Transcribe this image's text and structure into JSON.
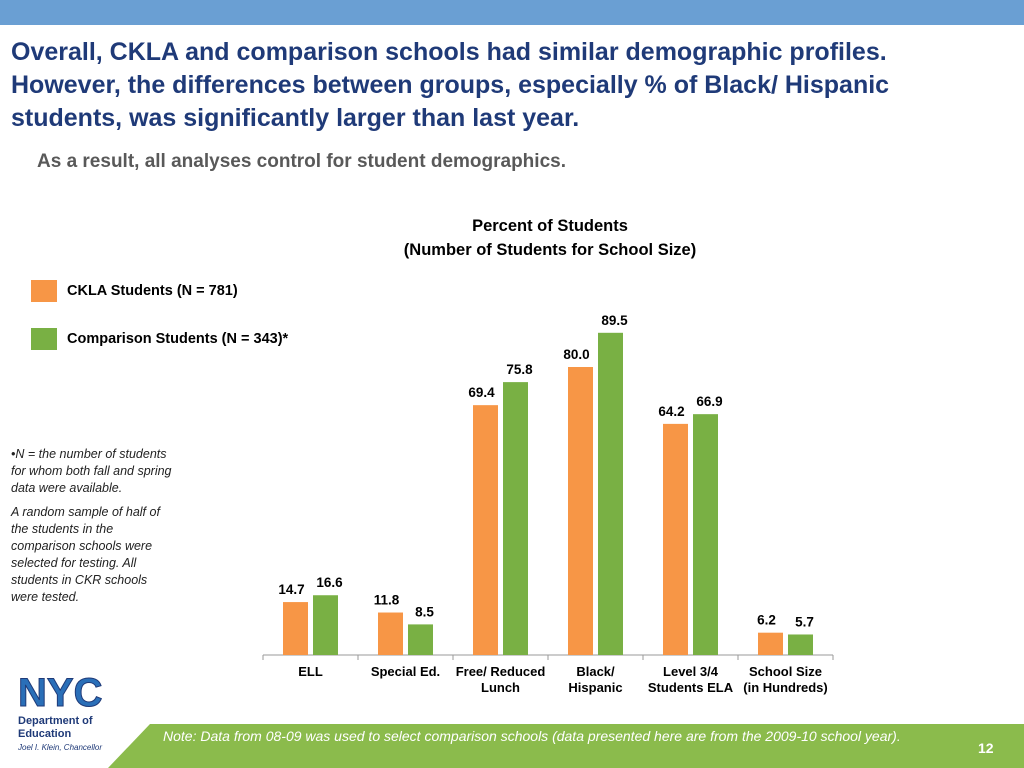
{
  "headline": {
    "line1": "Overall, CKLA and comparison schools had similar demographic profiles.",
    "line2": "However, the differences between groups, especially % of Black/ Hispanic",
    "line3": "students, was significantly larger than last year."
  },
  "subhead": "As a result, all analyses control for student demographics.",
  "footnotes": {
    "n_note": "•N = the number of students for whom both fall and spring data were available.",
    "sample_note": "A random sample of half of the students in the comparison schools were selected for testing.  All students in CKR schools were tested."
  },
  "logo": {
    "mark": "NYC",
    "dept_line1": "Department of",
    "dept_line2": "Education",
    "chancellor": "Joel I. Klein, Chancellor"
  },
  "bottom_note": "Note: Data from 08-09 was used to select comparison schools (data presented here are from the 2009-10 school year).",
  "page_number": "12",
  "colors": {
    "ckla": "#f79646",
    "comparison": "#79b044",
    "top_bar": "#6a9fd3",
    "bottom_bar": "#8bbb4c",
    "headline": "#1f3a78"
  },
  "chart_data": {
    "type": "bar",
    "title": "Percent of Students",
    "subtitle": "(Number of Students for School Size)",
    "xlabel": "",
    "ylabel": "",
    "ylim": [
      0,
      100
    ],
    "grid": false,
    "legend_position": "left",
    "categories": [
      [
        "ELL"
      ],
      [
        "Special Ed."
      ],
      [
        "Free/ Reduced",
        "Lunch"
      ],
      [
        "Black/",
        "Hispanic"
      ],
      [
        "Level 3/4",
        "Students ELA"
      ],
      [
        "School Size",
        "(in Hundreds)"
      ]
    ],
    "series": [
      {
        "name": "CKLA Students (N = 781)",
        "values": [
          14.7,
          11.8,
          69.4,
          80.0,
          64.2,
          6.2
        ],
        "labels": [
          "14.7",
          "11.8",
          "69.4",
          "80.0",
          "64.2",
          "6.2"
        ]
      },
      {
        "name": "Comparison Students (N = 343)*",
        "values": [
          16.6,
          8.5,
          75.8,
          89.5,
          66.9,
          5.7
        ],
        "labels": [
          "16.6",
          "8.5",
          "75.8",
          "89.5",
          "66.9",
          "5.7"
        ]
      }
    ]
  }
}
